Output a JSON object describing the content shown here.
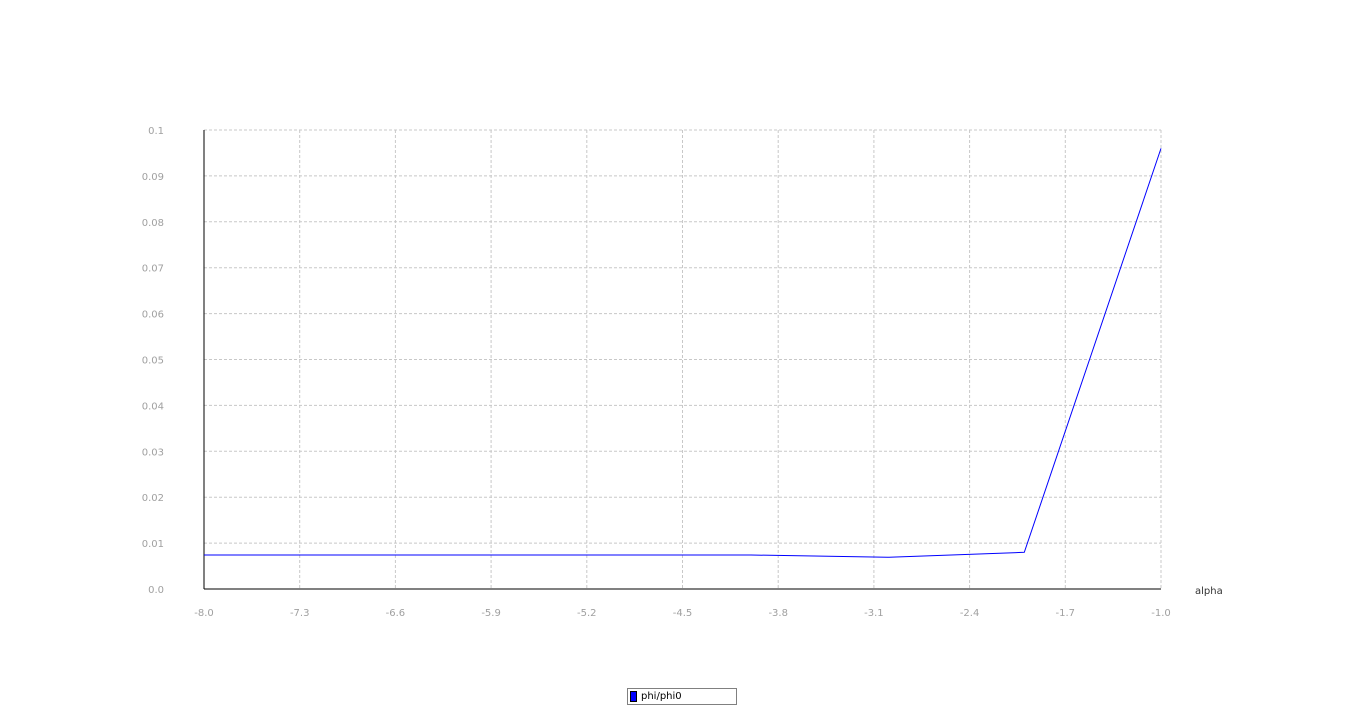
{
  "chart_data": {
    "type": "line",
    "title": "",
    "xlabel": "alpha",
    "ylabel": "",
    "xlim": [
      -8.0,
      -1.0
    ],
    "ylim": [
      0.0,
      0.1
    ],
    "x_ticks": [
      "-8.0",
      "-7.3",
      "-6.6",
      "-5.9",
      "-5.2",
      "-4.5",
      "-3.8",
      "-3.1",
      "-2.4",
      "-1.7",
      "-1.0"
    ],
    "y_ticks": [
      "0.0",
      "0.01",
      "0.02",
      "0.03",
      "0.04",
      "0.05",
      "0.06",
      "0.07",
      "0.08",
      "0.09",
      "0.1"
    ],
    "grid": true,
    "legend_position": "bottom-center",
    "series": [
      {
        "name": "phi/phi0",
        "color": "#0000ff",
        "x": [
          -8.0,
          -7.0,
          -6.0,
          -5.0,
          -4.0,
          -3.0,
          -2.0,
          -1.0
        ],
        "y": [
          0.0074,
          0.0074,
          0.0074,
          0.0074,
          0.0074,
          0.0069,
          0.008,
          0.096
        ]
      }
    ]
  }
}
